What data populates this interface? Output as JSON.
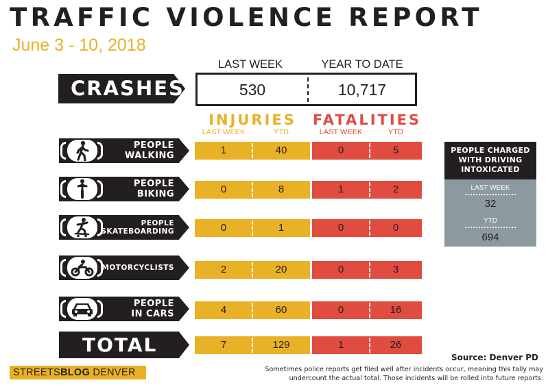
{
  "title": "TRAFFIC VIOLENCE REPORT",
  "date": "June 3 - 10, 2018",
  "crashes": {
    "label": "CRASHES",
    "col_last_week": "LAST WEEK",
    "col_ytd": "YEAR TO DATE",
    "last_week": "530",
    "ytd": "10,717"
  },
  "injuries": {
    "label": "INJURIES",
    "sub_last_week": "LAST WEEK",
    "sub_ytd": "YTD",
    "color": "#e9b125"
  },
  "fatalities": {
    "label": "FATALITIES",
    "sub_last_week": "LAST WEEK",
    "sub_ytd": "YTD",
    "color": "#e04c40"
  },
  "rows": [
    {
      "line1": "PEOPLE",
      "line2": "WALKING",
      "icon": "pedestrian-icon",
      "inj_lw": "1",
      "inj_ytd": "40",
      "fat_lw": "0",
      "fat_ytd": "5"
    },
    {
      "line1": "PEOPLE",
      "line2": "BIKING",
      "icon": "cyclist-icon",
      "inj_lw": "0",
      "inj_ytd": "8",
      "fat_lw": "1",
      "fat_ytd": "2"
    },
    {
      "line1": "PEOPLE",
      "line2": "SKATEBOARDING",
      "icon": "skateboarder-icon",
      "inj_lw": "0",
      "inj_ytd": "1",
      "fat_lw": "0",
      "fat_ytd": "0"
    },
    {
      "line1": "",
      "line2": "MOTORCYCLISTS",
      "icon": "motorcycle-icon",
      "inj_lw": "2",
      "inj_ytd": "20",
      "fat_lw": "0",
      "fat_ytd": "3"
    },
    {
      "line1": "PEOPLE",
      "line2": "IN CARS",
      "icon": "car-icon",
      "inj_lw": "4",
      "inj_ytd": "60",
      "fat_lw": "0",
      "fat_ytd": "16"
    }
  ],
  "total": {
    "label": "TOTAL",
    "inj_lw": "7",
    "inj_ytd": "129",
    "fat_lw": "1",
    "fat_ytd": "26"
  },
  "dui": {
    "heading_line1": "PEOPLE CHARGED",
    "heading_line2": "WITH DRIVING",
    "heading_line3": "INTOXICATED",
    "last_week_label": "LAST WEEK",
    "last_week": "32",
    "ytd_label": "YTD",
    "ytd": "694"
  },
  "source": "Source: Denver PD",
  "note_line1": "Sometimes police reports get filed well after incidents occur, meaning this tally may",
  "note_line2": "undercount the actual total. Those incidents will be rolled into future reports.",
  "logo": {
    "part1": "STREETS",
    "part2": "BLOG",
    "part3": " DENVER"
  }
}
